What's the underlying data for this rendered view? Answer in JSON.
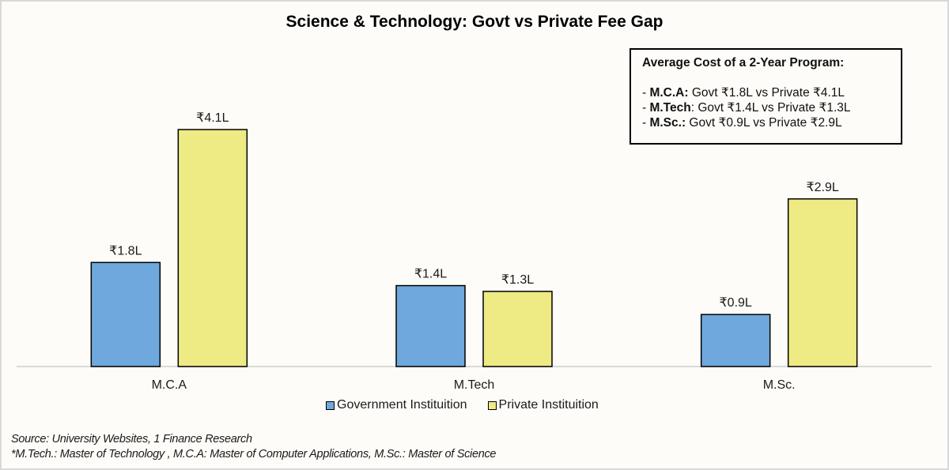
{
  "chart_data": {
    "type": "bar",
    "title": "Science & Technology: Govt vs Private Fee Gap",
    "xlabel": "",
    "ylabel": "",
    "categories": [
      "M.C.A",
      "M.Tech",
      "M.Sc."
    ],
    "series": [
      {
        "name": "Government Instituition",
        "color": "#6fa8dc",
        "values": [
          1.8,
          1.4,
          0.9
        ],
        "labels": [
          "₹1.8L",
          "₹1.4L",
          "₹0.9L"
        ]
      },
      {
        "name": "Private Instituition",
        "color": "#eeea84",
        "values": [
          4.1,
          1.3,
          2.9
        ],
        "labels": [
          "₹4.1L",
          "₹1.3L",
          "₹2.9L"
        ]
      }
    ],
    "unit": "₹ Lakh",
    "ylim": [
      0,
      4.1
    ],
    "grid": false,
    "legend_position": "bottom"
  },
  "info_box": {
    "heading": "Average Cost of a 2-Year Program:",
    "lines": [
      {
        "bold": "M.C.A:",
        "text": " Govt ₹1.8L vs Private ₹4.1L"
      },
      {
        "bold": "M.Tech",
        "text": ": Govt ₹1.4L vs Private ₹1.3L"
      },
      {
        "bold": "M.Sc.:",
        "text": " Govt ₹0.9L vs Private ₹2.9L"
      }
    ]
  },
  "footnote": {
    "source": "Source: University Websites, 1 Finance Research",
    "abbreviations": "*M.Tech.: Master of Technology , M.C.A: Master of Computer Applications, M.Sc.: Master of Science"
  }
}
